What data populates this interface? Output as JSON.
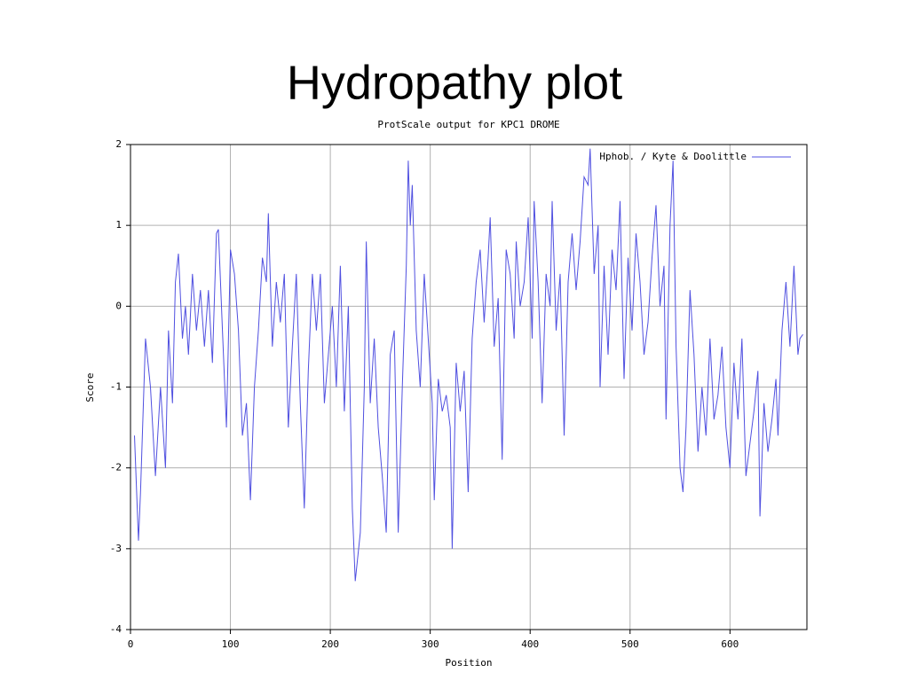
{
  "title": "Hydropathy plot",
  "chart_data": {
    "type": "line",
    "title": "ProtScale output for KPC1 DROME",
    "x_label": "Position",
    "y_label": "Score",
    "x": [
      4,
      8,
      10,
      15,
      20,
      25,
      30,
      35,
      38,
      42,
      45,
      48,
      52,
      55,
      58,
      62,
      66,
      70,
      74,
      78,
      82,
      86,
      88,
      92,
      96,
      100,
      104,
      108,
      112,
      116,
      120,
      124,
      128,
      132,
      136,
      138,
      142,
      146,
      150,
      154,
      158,
      162,
      166,
      170,
      174,
      178,
      182,
      186,
      190,
      194,
      198,
      202,
      206,
      210,
      214,
      218,
      222,
      225,
      230,
      234,
      236,
      240,
      244,
      248,
      252,
      256,
      260,
      264,
      268,
      272,
      276,
      278,
      280,
      282,
      286,
      290,
      294,
      298,
      302,
      304,
      308,
      312,
      316,
      320,
      322,
      326,
      330,
      334,
      338,
      342,
      346,
      350,
      354,
      358,
      360,
      364,
      368,
      372,
      376,
      380,
      384,
      386,
      390,
      394,
      398,
      402,
      404,
      408,
      412,
      416,
      420,
      422,
      426,
      430,
      434,
      438,
      442,
      446,
      450,
      454,
      458,
      460,
      464,
      468,
      470,
      474,
      478,
      482,
      486,
      490,
      494,
      498,
      502,
      506,
      510,
      514,
      518,
      522,
      526,
      530,
      534,
      536,
      540,
      543,
      546,
      550,
      553,
      556,
      560,
      564,
      568,
      572,
      576,
      580,
      584,
      588,
      592,
      596,
      600,
      604,
      608,
      612,
      616,
      620,
      624,
      628,
      630,
      634,
      638,
      642,
      646,
      648,
      652,
      656,
      660,
      664,
      668,
      670,
      673
    ],
    "series": [
      {
        "name": "Hphob. / Kyte & Doolittle",
        "color": "#5050e0",
        "values": [
          -1.6,
          -2.9,
          -2.3,
          -0.4,
          -1.0,
          -2.1,
          -1.0,
          -2.0,
          -0.3,
          -1.2,
          0.3,
          0.65,
          -0.4,
          0.0,
          -0.6,
          0.4,
          -0.3,
          0.2,
          -0.5,
          0.2,
          -0.7,
          0.9,
          0.95,
          -0.3,
          -1.5,
          0.7,
          0.4,
          -0.3,
          -1.6,
          -1.2,
          -2.4,
          -1.0,
          -0.3,
          0.6,
          0.3,
          1.15,
          -0.5,
          0.3,
          -0.2,
          0.4,
          -1.5,
          -0.5,
          0.4,
          -1.2,
          -2.5,
          -0.8,
          0.4,
          -0.3,
          0.4,
          -1.2,
          -0.6,
          0.0,
          -1.0,
          0.5,
          -1.3,
          0.0,
          -2.5,
          -3.4,
          -2.8,
          -1.0,
          0.8,
          -1.2,
          -0.4,
          -1.5,
          -2.1,
          -2.8,
          -0.6,
          -0.3,
          -2.8,
          -1.0,
          0.5,
          1.8,
          1.0,
          1.5,
          -0.3,
          -1.0,
          0.4,
          -0.4,
          -1.2,
          -2.4,
          -0.9,
          -1.3,
          -1.1,
          -1.5,
          -3.0,
          -0.7,
          -1.3,
          -0.8,
          -2.3,
          -0.4,
          0.3,
          0.7,
          -0.2,
          0.6,
          1.1,
          -0.5,
          0.1,
          -1.9,
          0.7,
          0.4,
          -0.4,
          0.8,
          0.0,
          0.3,
          1.1,
          -0.4,
          1.3,
          0.3,
          -1.2,
          0.4,
          0.0,
          1.3,
          -0.3,
          0.4,
          -1.6,
          0.3,
          0.9,
          0.2,
          0.8,
          1.6,
          1.5,
          1.95,
          0.4,
          1.0,
          -1.0,
          0.5,
          -0.6,
          0.7,
          0.2,
          1.3,
          -0.9,
          0.6,
          -0.3,
          0.9,
          0.3,
          -0.6,
          -0.2,
          0.6,
          1.25,
          0.0,
          0.5,
          -1.4,
          1.0,
          1.8,
          -0.5,
          -2.0,
          -2.3,
          -1.5,
          0.2,
          -0.6,
          -1.8,
          -1.0,
          -1.6,
          -0.4,
          -1.4,
          -1.1,
          -0.5,
          -1.5,
          -2.0,
          -0.7,
          -1.4,
          -0.4,
          -2.1,
          -1.7,
          -1.3,
          -0.8,
          -2.6,
          -1.2,
          -1.8,
          -1.4,
          -0.9,
          -1.6,
          -0.3,
          0.3,
          -0.5,
          0.5,
          -0.6,
          -0.4,
          -0.35
        ]
      }
    ],
    "xlim": [
      0,
      677
    ],
    "xticks": [
      0,
      100,
      200,
      300,
      400,
      500,
      600
    ],
    "ylim": [
      -4,
      2
    ],
    "yticks": [
      -4,
      -3,
      -2,
      -1,
      0,
      1,
      2
    ],
    "grid": true,
    "legend": "upper right"
  }
}
